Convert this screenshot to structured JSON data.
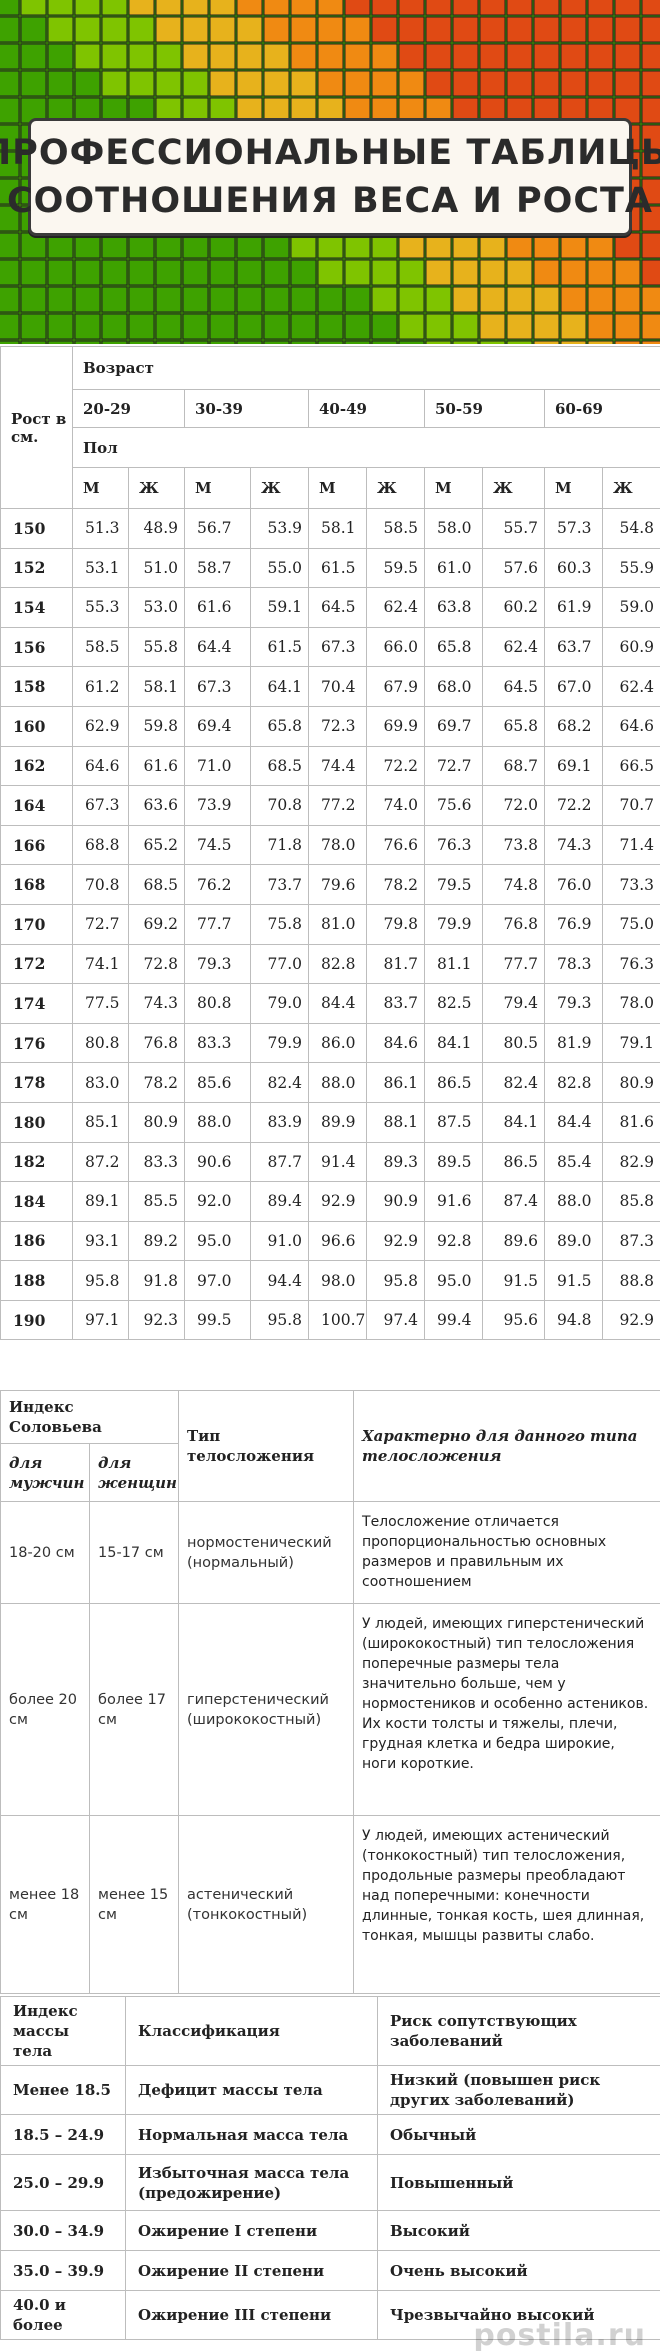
{
  "banner": {
    "title_line1": "ПРОФЕССИОНАЛЬНЫЕ ТАБЛИЦЫ",
    "title_line2": "СООТНОШЕНИЯ ВЕСА И РОСТА"
  },
  "weight_table": {
    "height_header": "Рост в см.",
    "age_header": "Возраст",
    "sex_header": "Пол",
    "age_groups": [
      "20-29",
      "30-39",
      "40-49",
      "50-59",
      "60-69"
    ],
    "sex_labels": [
      "М",
      "Ж"
    ],
    "rows": [
      {
        "h": "150",
        "v": [
          "51.3",
          "48.9",
          "56.7",
          "53.9",
          "58.1",
          "58.5",
          "58.0",
          "55.7",
          "57.3",
          "54.8"
        ]
      },
      {
        "h": "152",
        "v": [
          "53.1",
          "51.0",
          "58.7",
          "55.0",
          "61.5",
          "59.5",
          "61.0",
          "57.6",
          "60.3",
          "55.9"
        ]
      },
      {
        "h": "154",
        "v": [
          "55.3",
          "53.0",
          "61.6",
          "59.1",
          "64.5",
          "62.4",
          "63.8",
          "60.2",
          "61.9",
          "59.0"
        ]
      },
      {
        "h": "156",
        "v": [
          "58.5",
          "55.8",
          "64.4",
          "61.5",
          "67.3",
          "66.0",
          "65.8",
          "62.4",
          "63.7",
          "60.9"
        ]
      },
      {
        "h": "158",
        "v": [
          "61.2",
          "58.1",
          "67.3",
          "64.1",
          "70.4",
          "67.9",
          "68.0",
          "64.5",
          "67.0",
          "62.4"
        ]
      },
      {
        "h": "160",
        "v": [
          "62.9",
          "59.8",
          "69.4",
          "65.8",
          "72.3",
          "69.9",
          "69.7",
          "65.8",
          "68.2",
          "64.6"
        ]
      },
      {
        "h": "162",
        "v": [
          "64.6",
          "61.6",
          "71.0",
          "68.5",
          "74.4",
          "72.2",
          "72.7",
          "68.7",
          "69.1",
          "66.5"
        ]
      },
      {
        "h": "164",
        "v": [
          "67.3",
          "63.6",
          "73.9",
          "70.8",
          "77.2",
          "74.0",
          "75.6",
          "72.0",
          "72.2",
          "70.7"
        ]
      },
      {
        "h": "166",
        "v": [
          "68.8",
          "65.2",
          "74.5",
          "71.8",
          "78.0",
          "76.6",
          "76.3",
          "73.8",
          "74.3",
          "71.4"
        ]
      },
      {
        "h": "168",
        "v": [
          "70.8",
          "68.5",
          "76.2",
          "73.7",
          "79.6",
          "78.2",
          "79.5",
          "74.8",
          "76.0",
          "73.3"
        ]
      },
      {
        "h": "170",
        "v": [
          "72.7",
          "69.2",
          "77.7",
          "75.8",
          "81.0",
          "79.8",
          "79.9",
          "76.8",
          "76.9",
          "75.0"
        ]
      },
      {
        "h": "172",
        "v": [
          "74.1",
          "72.8",
          "79.3",
          "77.0",
          "82.8",
          "81.7",
          "81.1",
          "77.7",
          "78.3",
          "76.3"
        ]
      },
      {
        "h": "174",
        "v": [
          "77.5",
          "74.3",
          "80.8",
          "79.0",
          "84.4",
          "83.7",
          "82.5",
          "79.4",
          "79.3",
          "78.0"
        ]
      },
      {
        "h": "176",
        "v": [
          "80.8",
          "76.8",
          "83.3",
          "79.9",
          "86.0",
          "84.6",
          "84.1",
          "80.5",
          "81.9",
          "79.1"
        ]
      },
      {
        "h": "178",
        "v": [
          "83.0",
          "78.2",
          "85.6",
          "82.4",
          "88.0",
          "86.1",
          "86.5",
          "82.4",
          "82.8",
          "80.9"
        ]
      },
      {
        "h": "180",
        "v": [
          "85.1",
          "80.9",
          "88.0",
          "83.9",
          "89.9",
          "88.1",
          "87.5",
          "84.1",
          "84.4",
          "81.6"
        ]
      },
      {
        "h": "182",
        "v": [
          "87.2",
          "83.3",
          "90.6",
          "87.7",
          "91.4",
          "89.3",
          "89.5",
          "86.5",
          "85.4",
          "82.9"
        ]
      },
      {
        "h": "184",
        "v": [
          "89.1",
          "85.5",
          "92.0",
          "89.4",
          "92.9",
          "90.9",
          "91.6",
          "87.4",
          "88.0",
          "85.8"
        ]
      },
      {
        "h": "186",
        "v": [
          "93.1",
          "89.2",
          "95.0",
          "91.0",
          "96.6",
          "92.9",
          "92.8",
          "89.6",
          "89.0",
          "87.3"
        ]
      },
      {
        "h": "188",
        "v": [
          "95.8",
          "91.8",
          "97.0",
          "94.4",
          "98.0",
          "95.8",
          "95.0",
          "91.5",
          "91.5",
          "88.8"
        ]
      },
      {
        "h": "190",
        "v": [
          "97.1",
          "92.3",
          "99.5",
          "95.8",
          "100.7",
          "97.4",
          "99.4",
          "95.6",
          "94.8",
          "92.9"
        ]
      }
    ]
  },
  "solovyov_table": {
    "index_header": "Индекс Соловьева",
    "men_header": "для мужчин",
    "women_header": "для женщин",
    "type_header": "Тип телосложения",
    "desc_header": "Характерно для данного типа телосложения",
    "rows": [
      {
        "men": "18-20 см",
        "women": "15-17 см",
        "type": "нормостенический (нормальный)",
        "desc": "Телосложение отличается пропорциональностью основных размеров и правильным их соотношением"
      },
      {
        "men": "более 20 см",
        "women": "более 17 см",
        "type": "гиперстенический (ширококостный)",
        "desc": "У людей, имеющих гиперстенический (ширококостный) тип телосложения поперечные размеры тела значительно больше, чем у нормостеников и особенно астеников. Их кости толсты и тяжелы, плечи, грудная клетка и бедра широкие, ноги короткие."
      },
      {
        "men": "менее 18 см",
        "women": "менее 15 см",
        "type": "астенический (тонкокостный)",
        "desc": "У людей, имеющих астенический (тонкокостный) тип телосложения, продольные размеры преобладают над поперечными: конечности длинные, тонкая кость, шея длинная, тонкая, мышцы развиты слабо."
      }
    ]
  },
  "bmi_table": {
    "headers": [
      "Индекс массы тела",
      "Классификация",
      "Риск сопутствующих заболеваний"
    ],
    "rows": [
      {
        "bmi": "Менее 18.5",
        "cls": "Дефицит массы тела",
        "risk": "Низкий (повышен риск других заболеваний)"
      },
      {
        "bmi": "18.5 – 24.9",
        "cls": "Нормальная масса тела",
        "risk": "Обычный"
      },
      {
        "bmi": "25.0 – 29.9",
        "cls": "Избыточная масса тела (предожирение)",
        "risk": "Повышенный"
      },
      {
        "bmi": "30.0 – 34.9",
        "cls": "Ожирение I степени",
        "risk": "Высокий"
      },
      {
        "bmi": "35.0 – 39.9",
        "cls": "Ожирение II степени",
        "risk": "Очень высокий"
      },
      {
        "bmi": "40.0 и более",
        "cls": "Ожирение III степени",
        "risk": "Чрезвычайно высокий"
      }
    ]
  },
  "watermark": "postila.ru"
}
